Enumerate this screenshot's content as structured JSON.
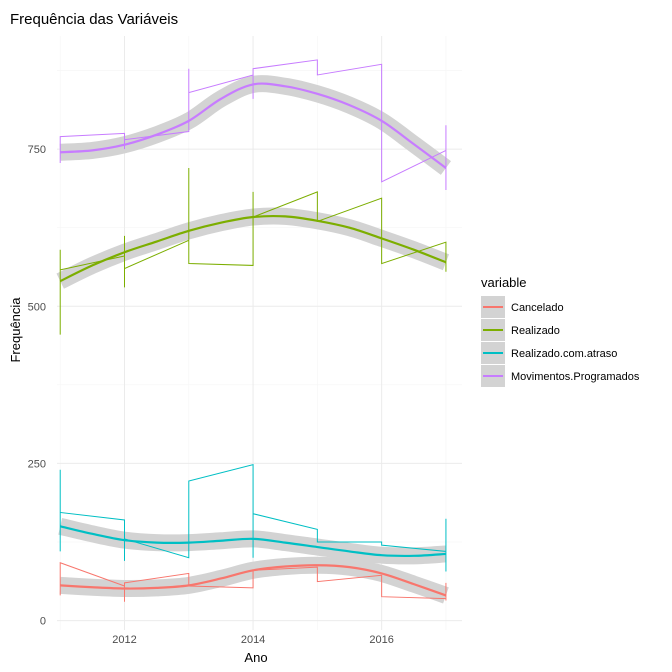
{
  "chart_data": {
    "type": "line",
    "title": "Frequência das Variáveis",
    "xlabel": "Ano",
    "ylabel": "Frequência",
    "xlim": [
      2010.95,
      2017.25
    ],
    "ylim": [
      -15,
      930
    ],
    "x_ticks": [
      2012,
      2014,
      2016
    ],
    "y_ticks": [
      0,
      250,
      500,
      750
    ],
    "grid": true,
    "legend_position": "right",
    "legend_title": "variable",
    "series": [
      {
        "name": "Cancelado",
        "color": "#F8766D",
        "raw": [
          [
            2011,
            40
          ],
          [
            2011,
            92
          ],
          [
            2012,
            55
          ],
          [
            2012,
            30
          ],
          [
            2012,
            60
          ],
          [
            2013,
            75
          ],
          [
            2013,
            55
          ],
          [
            2014,
            52
          ],
          [
            2014,
            80
          ],
          [
            2015,
            85
          ],
          [
            2015,
            62
          ],
          [
            2016,
            72
          ],
          [
            2016,
            38
          ],
          [
            2017,
            35
          ],
          [
            2017,
            60
          ],
          [
            2017,
            32
          ]
        ],
        "smooth": [
          [
            2011,
            56
          ],
          [
            2011.5,
            53
          ],
          [
            2012,
            51
          ],
          [
            2012.5,
            52
          ],
          [
            2013,
            56
          ],
          [
            2013.5,
            67
          ],
          [
            2014,
            80
          ],
          [
            2014.5,
            86
          ],
          [
            2015,
            88
          ],
          [
            2015.5,
            85
          ],
          [
            2016,
            75
          ],
          [
            2016.5,
            58
          ],
          [
            2017,
            40
          ]
        ]
      },
      {
        "name": "Realizado",
        "color": "#7CAE00",
        "raw": [
          [
            2011,
            455
          ],
          [
            2011,
            590
          ],
          [
            2011,
            558
          ],
          [
            2012,
            580
          ],
          [
            2012,
            612
          ],
          [
            2012,
            530
          ],
          [
            2012,
            560
          ],
          [
            2013,
            605
          ],
          [
            2013,
            720
          ],
          [
            2013,
            568
          ],
          [
            2014,
            565
          ],
          [
            2014,
            682
          ],
          [
            2014,
            642
          ],
          [
            2015,
            682
          ],
          [
            2015,
            635
          ],
          [
            2016,
            672
          ],
          [
            2016,
            568
          ],
          [
            2017,
            602
          ],
          [
            2017,
            555
          ]
        ],
        "smooth": [
          [
            2011,
            540
          ],
          [
            2011.5,
            565
          ],
          [
            2012,
            586
          ],
          [
            2012.5,
            603
          ],
          [
            2013,
            620
          ],
          [
            2013.5,
            633
          ],
          [
            2014,
            642
          ],
          [
            2014.5,
            643
          ],
          [
            2015,
            636
          ],
          [
            2015.5,
            625
          ],
          [
            2016,
            608
          ],
          [
            2016.5,
            590
          ],
          [
            2017,
            570
          ]
        ]
      },
      {
        "name": "Realizado.com.atraso",
        "color": "#00BFC4",
        "raw": [
          [
            2011,
            110
          ],
          [
            2011,
            240
          ],
          [
            2011,
            172
          ],
          [
            2012,
            160
          ],
          [
            2012,
            95
          ],
          [
            2012,
            130
          ],
          [
            2013,
            100
          ],
          [
            2013,
            222
          ],
          [
            2014,
            248
          ],
          [
            2014,
            100
          ],
          [
            2014,
            170
          ],
          [
            2015,
            145
          ],
          [
            2015,
            125
          ],
          [
            2016,
            125
          ],
          [
            2016,
            120
          ],
          [
            2017,
            110
          ],
          [
            2017,
            162
          ],
          [
            2017,
            78
          ]
        ],
        "smooth": [
          [
            2011,
            150
          ],
          [
            2011.5,
            138
          ],
          [
            2012,
            128
          ],
          [
            2012.5,
            124
          ],
          [
            2013,
            124
          ],
          [
            2013.5,
            127
          ],
          [
            2014,
            130
          ],
          [
            2014.5,
            124
          ],
          [
            2015,
            117
          ],
          [
            2015.5,
            110
          ],
          [
            2016,
            104
          ],
          [
            2016.5,
            103
          ],
          [
            2017,
            106
          ]
        ]
      },
      {
        "name": "Movimentos.Programados",
        "color": "#C77CFF",
        "raw": [
          [
            2011,
            728
          ],
          [
            2011,
            770
          ],
          [
            2012,
            775
          ],
          [
            2012,
            750
          ],
          [
            2012,
            765
          ],
          [
            2013,
            778
          ],
          [
            2013,
            878
          ],
          [
            2013,
            840
          ],
          [
            2014,
            868
          ],
          [
            2014,
            830
          ],
          [
            2014,
            878
          ],
          [
            2015,
            892
          ],
          [
            2015,
            868
          ],
          [
            2016,
            885
          ],
          [
            2016,
            732
          ],
          [
            2016,
            698
          ],
          [
            2017,
            748
          ],
          [
            2017,
            788
          ],
          [
            2017,
            685
          ]
        ],
        "smooth": [
          [
            2011,
            745
          ],
          [
            2011.5,
            748
          ],
          [
            2012,
            757
          ],
          [
            2012.5,
            773
          ],
          [
            2013,
            795
          ],
          [
            2013.5,
            830
          ],
          [
            2014,
            853
          ],
          [
            2014.5,
            850
          ],
          [
            2015,
            838
          ],
          [
            2015.5,
            820
          ],
          [
            2016,
            795
          ],
          [
            2016.5,
            758
          ],
          [
            2017,
            720
          ]
        ]
      }
    ]
  }
}
